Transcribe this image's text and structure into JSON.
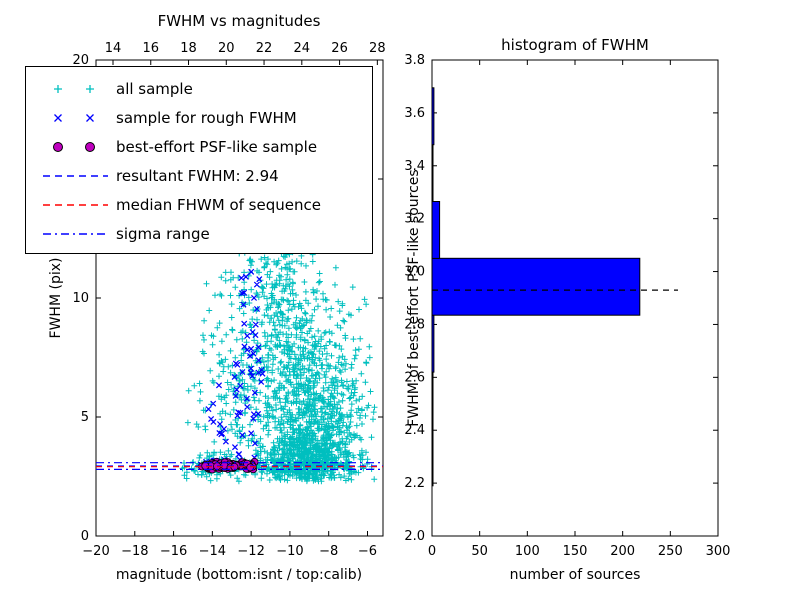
{
  "figure": {
    "background": "#ffffff"
  },
  "left_plot": {
    "title": "FWHM vs magnitudes",
    "xlabel": "magnitude (bottom:isnt / top:calib)",
    "ylabel": "FWHM (pix)",
    "bottom_ticks": [
      "−20",
      "−18",
      "−16",
      "−14",
      "−12",
      "−10",
      "−8",
      "−6"
    ],
    "top_ticks": [
      "14",
      "16",
      "18",
      "20",
      "22",
      "24",
      "26",
      "28"
    ],
    "y_ticks": [
      "0",
      "5",
      "10",
      "15",
      "20"
    ]
  },
  "right_plot": {
    "title": "histogram of FWHM",
    "xlabel": "number of sources",
    "ylabel": "FWHM of best-effort PSF-like sources",
    "x_ticks": [
      "0",
      "50",
      "100",
      "150",
      "200",
      "250",
      "300"
    ],
    "y_ticks": [
      "2.0",
      "2.2",
      "2.4",
      "2.6",
      "2.8",
      "3.0",
      "3.2",
      "3.4",
      "3.6",
      "3.8"
    ]
  },
  "legend": {
    "items": [
      {
        "label": "all sample",
        "marker": "plus-pair",
        "color": "#00bfbf"
      },
      {
        "label": "sample for rough FWHM",
        "marker": "x-pair",
        "color": "#0000ff"
      },
      {
        "label": "best-effort PSF-like sample",
        "marker": "circle-pair",
        "color": "#bf00bf",
        "edge": "#000000"
      },
      {
        "label": "resultant FWHM: 2.94",
        "marker": "dashed-line",
        "color": "#0000ff"
      },
      {
        "label": "median FHWM of sequence",
        "marker": "dashed-line",
        "color": "#ff0000"
      },
      {
        "label": "sigma range",
        "marker": "dashdot-line",
        "color": "#0000ff"
      }
    ]
  },
  "chart_data": [
    {
      "type": "scatter",
      "title": "FWHM vs magnitudes",
      "xlabel": "magnitude (bottom:isnt / top:calib)",
      "ylabel": "FWHM (pix)",
      "xlim": [
        -20,
        -5.2
      ],
      "ylim": [
        0,
        20
      ],
      "xticks": [
        -20,
        -18,
        -16,
        -14,
        -12,
        -10,
        -8,
        -6
      ],
      "yticks": [
        0,
        5,
        10,
        15,
        20
      ],
      "top_axis": {
        "lim": [
          13.1,
          28.3
        ],
        "ticks": [
          14,
          16,
          18,
          20,
          22,
          24,
          26,
          28
        ]
      },
      "resultant_fwhm": 2.94,
      "series": [
        {
          "name": "all sample",
          "marker": "+",
          "color": "#00bfbf",
          "approx_n": 1990,
          "clamp": {
            "x": [
              -15.6,
              -5.6
            ],
            "y": [
              2.3,
              12.2
            ]
          },
          "clusters": [
            {
              "n": 500,
              "cx": -9.2,
              "cy": 3.3,
              "sx": 1.1,
              "sy": 0.7
            },
            {
              "n": 400,
              "cx": -9.0,
              "cy": 4.8,
              "sx": 1.4,
              "sy": 1.5
            },
            {
              "n": 250,
              "cx": -9.6,
              "cy": 7.0,
              "sx": 1.3,
              "sy": 1.8
            },
            {
              "n": 150,
              "cx": -10.8,
              "cy": 9.0,
              "sx": 1.0,
              "sy": 1.6
            },
            {
              "n": 120,
              "cx": -12.3,
              "cy": 6.5,
              "sx": 1.0,
              "sy": 2.4
            },
            {
              "n": 200,
              "cx": -10.0,
              "cy": 2.9,
              "sx": 2.6,
              "sy": 0.22
            },
            {
              "n": 60,
              "cx": -14.0,
              "cy": 3.0,
              "sx": 0.7,
              "sy": 0.35
            },
            {
              "n": 50,
              "cx": -13.9,
              "cy": 6.0,
              "sx": 0.8,
              "sy": 2.0
            },
            {
              "n": 80,
              "cx": -11.0,
              "cy": 11.0,
              "sx": 1.3,
              "sy": 0.9
            },
            {
              "n": 120,
              "cx": -8.2,
              "cy": 7.5,
              "sx": 1.2,
              "sy": 2.0
            },
            {
              "n": 60,
              "cx": -7.0,
              "cy": 4.5,
              "sx": 0.8,
              "sy": 1.5
            }
          ]
        },
        {
          "name": "sample for rough FWHM",
          "marker": "x",
          "color": "#0000ff",
          "approx_n": 74,
          "clamp": {
            "x": [
              -14.4,
              -11.4
            ],
            "y": [
              2.7,
              11.8
            ]
          },
          "clusters": [
            {
              "n": 22,
              "cx": -12.15,
              "cy": 9.0,
              "sx": 0.3,
              "sy": 1.3
            },
            {
              "n": 14,
              "cx": -12.5,
              "cy": 6.5,
              "sx": 0.5,
              "sy": 0.8
            },
            {
              "n": 14,
              "cx": -13.4,
              "cy": 4.3,
              "sx": 0.7,
              "sy": 0.8
            },
            {
              "n": 10,
              "cx": -13.9,
              "cy": 3.1,
              "sx": 0.4,
              "sy": 0.25
            },
            {
              "n": 8,
              "cx": -12.0,
              "cy": 4.8,
              "sx": 0.5,
              "sy": 0.8
            },
            {
              "n": 6,
              "cx": -11.7,
              "cy": 6.8,
              "sx": 0.3,
              "sy": 0.9
            }
          ]
        },
        {
          "name": "best-effort PSF-like sample",
          "marker": "o",
          "color": "#bf00bf",
          "edge": "#000000",
          "approx_n": 100,
          "clamp": {
            "x": [
              -14.6,
              -11.8
            ],
            "y": [
              2.78,
              3.12
            ]
          },
          "clusters": [
            {
              "n": 85,
              "cx": -13.3,
              "cy": 2.95,
              "sx": 0.75,
              "sy": 0.07
            },
            {
              "n": 15,
              "cx": -12.1,
              "cy": 2.95,
              "sx": 0.25,
              "sy": 0.07
            }
          ]
        }
      ],
      "lines": [
        {
          "name": "resultant FWHM",
          "y": 2.94,
          "style": "dashed",
          "color": "#0000ff"
        },
        {
          "name": "median FHWM of sequence",
          "y": 2.91,
          "style": "dashed",
          "color": "#ff0000"
        },
        {
          "name": "sigma range low",
          "y": 2.8,
          "style": "dashdot",
          "color": "#0000ff"
        },
        {
          "name": "sigma range high",
          "y": 3.08,
          "style": "dashdot",
          "color": "#0000ff"
        }
      ]
    },
    {
      "type": "bar",
      "orientation": "horizontal",
      "title": "histogram of FWHM",
      "xlabel": "number of sources",
      "ylabel": "FWHM of best-effort PSF-like sources",
      "xlim": [
        0,
        300
      ],
      "ylim": [
        2.0,
        3.8
      ],
      "xticks": [
        0,
        50,
        100,
        150,
        200,
        250,
        300
      ],
      "yticks": [
        2.0,
        2.2,
        2.4,
        2.6,
        2.8,
        3.0,
        3.2,
        3.4,
        3.6,
        3.8
      ],
      "bar_color": "#0000ff",
      "bins": [
        {
          "lo": 2.19,
          "hi": 2.405,
          "count": 1
        },
        {
          "lo": 2.405,
          "hi": 2.62,
          "count": 1
        },
        {
          "lo": 2.62,
          "hi": 2.835,
          "count": 2
        },
        {
          "lo": 2.835,
          "hi": 3.05,
          "count": 218
        },
        {
          "lo": 3.05,
          "hi": 3.265,
          "count": 8
        },
        {
          "lo": 3.265,
          "hi": 3.48,
          "count": 1
        },
        {
          "lo": 3.48,
          "hi": 3.695,
          "count": 2
        }
      ],
      "median_line": {
        "y": 2.93,
        "x_end": 258,
        "style": "dashed",
        "color": "#000000"
      }
    }
  ]
}
